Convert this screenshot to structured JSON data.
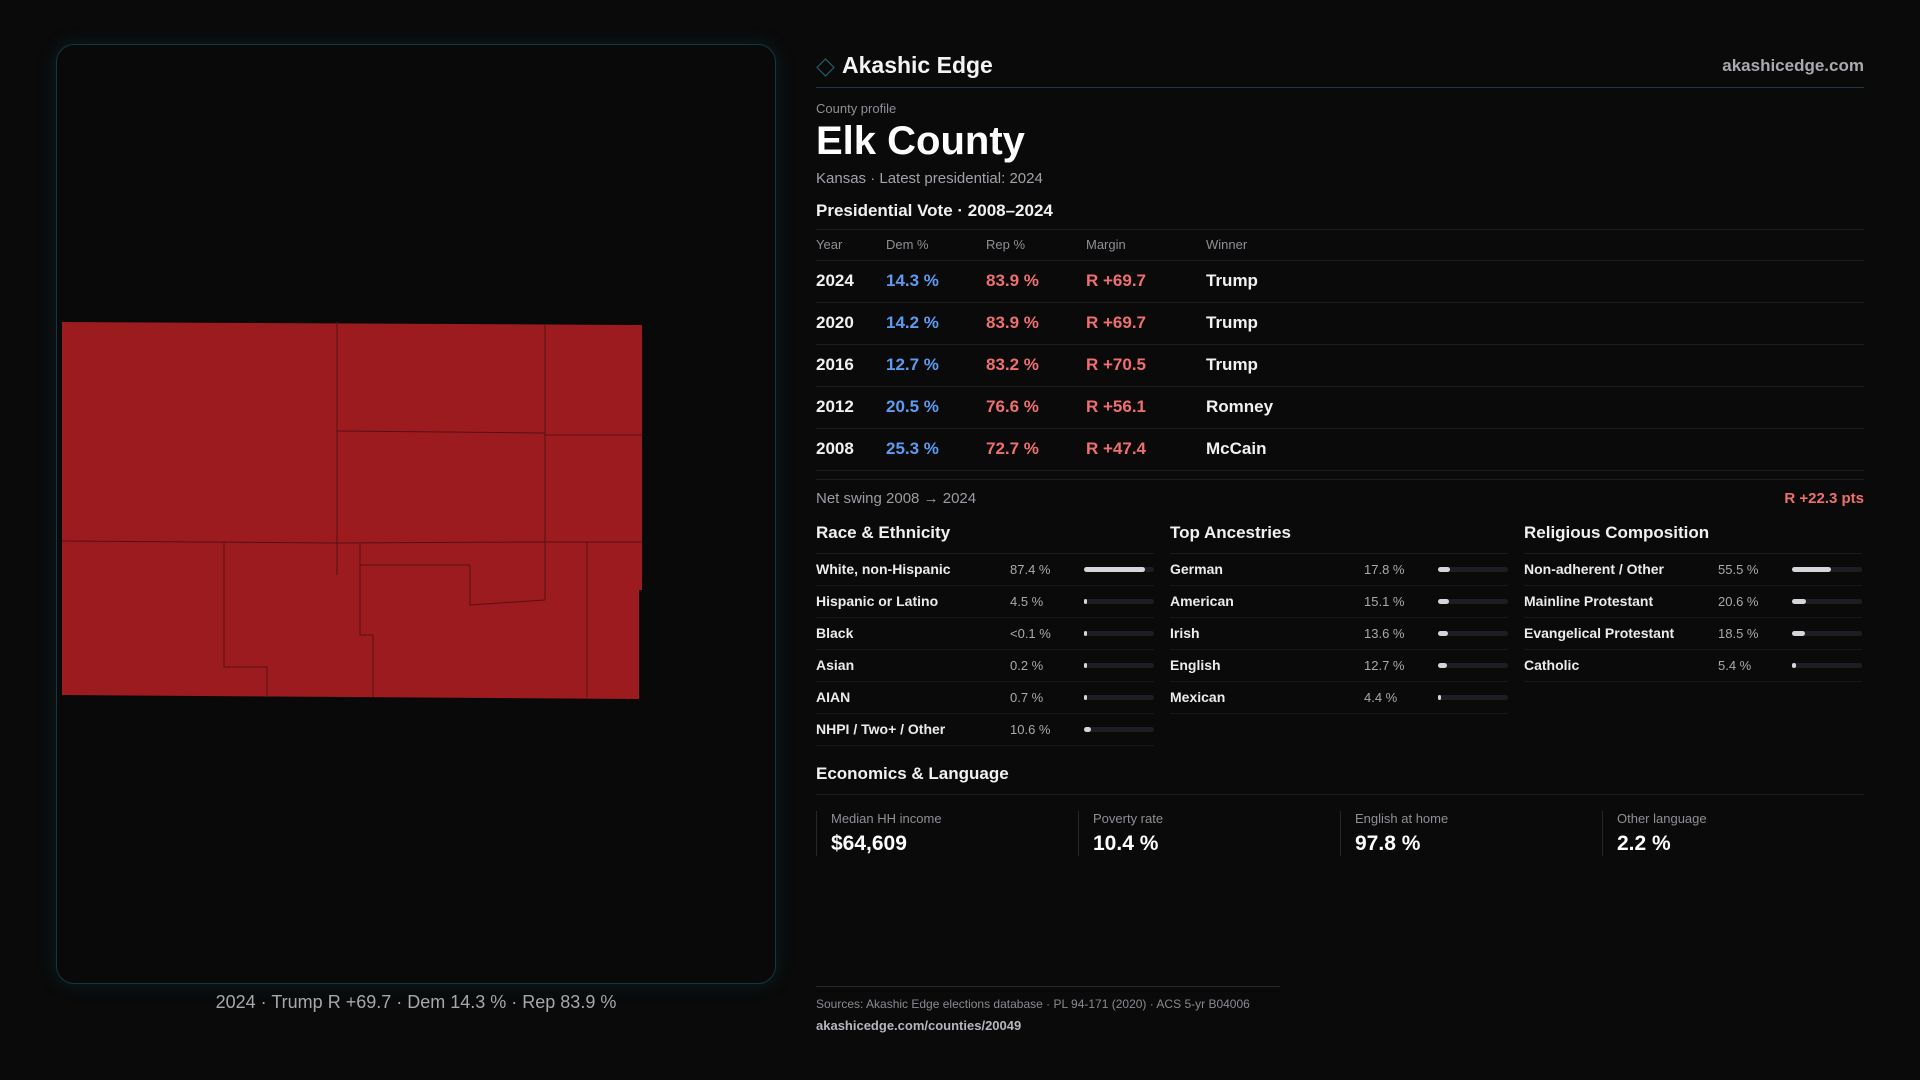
{
  "map": {
    "fill_color": "#9b1b1f",
    "caption": "2024 · Trump R +69.7 · Dem 14.3 % · Rep 83.9 %"
  },
  "header": {
    "brand_icon": "diamond-icon",
    "brand_name": "Akashic Edge",
    "site": "akashicedge.com"
  },
  "profile": {
    "eyebrow": "County profile",
    "county_name": "Elk County",
    "subtitle": "Kansas · Latest presidential: 2024"
  },
  "vote": {
    "title": "Presidential Vote · 2008–2024",
    "headers": {
      "year": "Year",
      "dem": "Dem %",
      "rep": "Rep %",
      "margin": "Margin",
      "winner": "Winner"
    },
    "rows": [
      {
        "year": "2024",
        "dem": "14.3 %",
        "rep": "83.9 %",
        "margin": "R +69.7",
        "winner": "Trump"
      },
      {
        "year": "2020",
        "dem": "14.2 %",
        "rep": "83.9 %",
        "margin": "R +69.7",
        "winner": "Trump"
      },
      {
        "year": "2016",
        "dem": "12.7 %",
        "rep": "83.2 %",
        "margin": "R +70.5",
        "winner": "Trump"
      },
      {
        "year": "2012",
        "dem": "20.5 %",
        "rep": "76.6 %",
        "margin": "R +56.1",
        "winner": "Romney"
      },
      {
        "year": "2008",
        "dem": "25.3 %",
        "rep": "72.7 %",
        "margin": "R +47.4",
        "winner": "McCain"
      }
    ],
    "swing_label": "Net swing 2008 → 2024",
    "swing_value": "R +22.3 pts"
  },
  "race": {
    "title": "Race & Ethnicity",
    "rows": [
      {
        "label": "White, non-Hispanic",
        "value": "87.4 %",
        "fraction": 0.874
      },
      {
        "label": "Hispanic or Latino",
        "value": "4.5 %",
        "fraction": 0.045
      },
      {
        "label": "Black",
        "value": "<0.1 %",
        "fraction": 0.0
      },
      {
        "label": "Asian",
        "value": "0.2 %",
        "fraction": 0.002
      },
      {
        "label": "AIAN",
        "value": "0.7 %",
        "fraction": 0.007
      },
      {
        "label": "NHPI / Two+ / Other",
        "value": "10.6 %",
        "fraction": 0.106
      }
    ]
  },
  "ancestry": {
    "title": "Top Ancestries",
    "rows": [
      {
        "label": "German",
        "value": "17.8 %",
        "fraction": 0.178
      },
      {
        "label": "American",
        "value": "15.1 %",
        "fraction": 0.151
      },
      {
        "label": "Irish",
        "value": "13.6 %",
        "fraction": 0.136
      },
      {
        "label": "English",
        "value": "12.7 %",
        "fraction": 0.127
      },
      {
        "label": "Mexican",
        "value": "4.4 %",
        "fraction": 0.044
      }
    ]
  },
  "religion": {
    "title": "Religious Composition",
    "rows": [
      {
        "label": "Non-adherent / Other",
        "value": "55.5 %",
        "fraction": 0.555
      },
      {
        "label": "Mainline Protestant",
        "value": "20.6 %",
        "fraction": 0.206
      },
      {
        "label": "Evangelical Protestant",
        "value": "18.5 %",
        "fraction": 0.185
      },
      {
        "label": "Catholic",
        "value": "5.4 %",
        "fraction": 0.054
      }
    ]
  },
  "economics": {
    "title": "Economics & Language",
    "cells": [
      {
        "label": "Median HH income",
        "value": "$64,609"
      },
      {
        "label": "Poverty rate",
        "value": "10.4 %"
      },
      {
        "label": "English at home",
        "value": "97.8 %"
      },
      {
        "label": "Other language",
        "value": "2.2 %"
      }
    ]
  },
  "footer": {
    "sources": "Sources: Akashic Edge elections database · PL 94-171 (2020) · ACS 5-yr B04006",
    "url": "akashicedge.com/counties/20049"
  }
}
